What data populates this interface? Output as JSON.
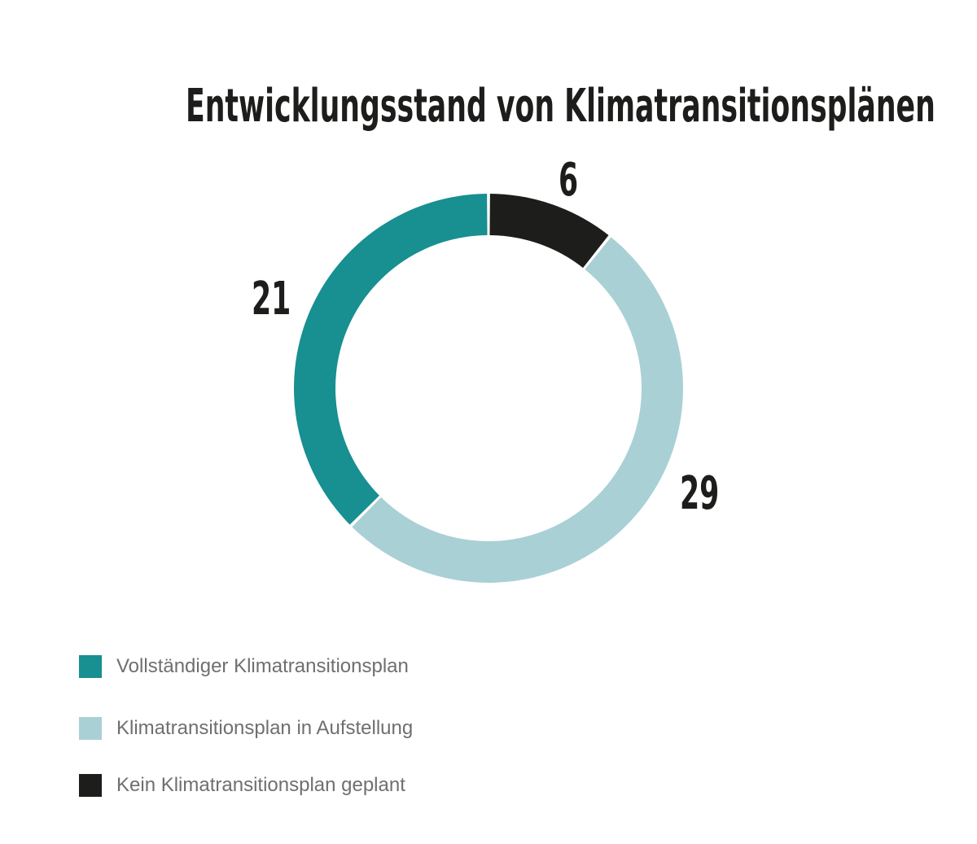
{
  "title": "Entwicklungsstand von Klimatransitionsplänen",
  "colors": {
    "complete": "#188f91",
    "in_progress": "#a9d0d5",
    "none": "#1d1d1b",
    "text": "#1d1d1b",
    "legend_text": "#6f6f6f"
  },
  "labels": {
    "complete": "21",
    "in_progress": "29",
    "none": "6"
  },
  "legend": [
    {
      "label": "Vollständiger Klimatransitionsplan",
      "color": "#188f91"
    },
    {
      "label": "Klimatransitionsplan in Aufstellung",
      "color": "#a9d0d5"
    },
    {
      "label": "Kein Klimatransitionsplan geplant",
      "color": "#1d1d1b"
    }
  ],
  "chart_data": {
    "type": "pie",
    "variant": "donut",
    "title": "Entwicklungsstand von Klimatransitionsplänen",
    "categories": [
      "Kein Klimatransitionsplan geplant",
      "Klimatransitionsplan in Aufstellung",
      "Vollständiger Klimatransitionsplan"
    ],
    "values": [
      6,
      29,
      21
    ],
    "colors": [
      "#1d1d1b",
      "#a9d0d5",
      "#188f91"
    ],
    "total": 56,
    "start_angle": "12 o'clock, clockwise",
    "data_labels": [
      "6",
      "29",
      "21"
    ],
    "legend_position": "bottom-left",
    "legend_order": [
      "Vollständiger Klimatransitionsplan",
      "Klimatransitionsplan in Aufstellung",
      "Kein Klimatransitionsplan geplant"
    ],
    "xlabel": "",
    "ylabel": "",
    "grid": false
  }
}
